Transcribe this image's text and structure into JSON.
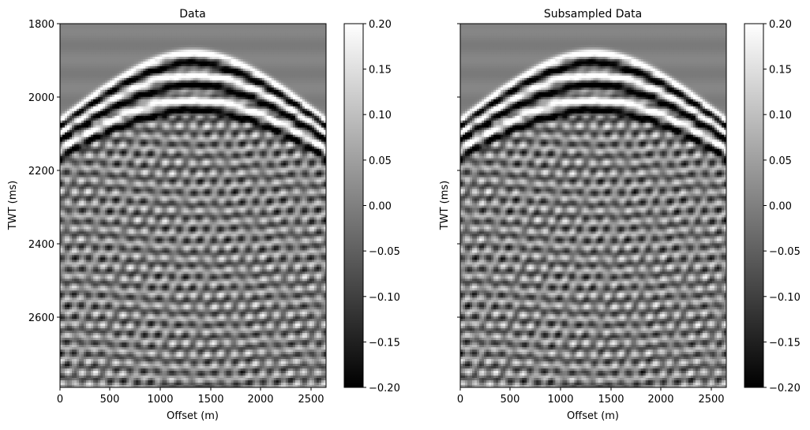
{
  "chart_data": [
    {
      "type": "heatmap",
      "title": "Data",
      "xlabel": "Offset (m)",
      "ylabel": "TWT (ms)",
      "xlim": [
        0,
        2650
      ],
      "ylim": [
        2790,
        1800
      ],
      "x_ticks": [
        0,
        500,
        1000,
        1500,
        2000,
        2500
      ],
      "y_ticks": [
        1800,
        2000,
        2200,
        2400,
        2600
      ],
      "colormap": "gray",
      "colorbar": {
        "range": [
          -0.2,
          0.2
        ],
        "ticks": [
          "0.20",
          "0.15",
          "0.10",
          "0.05",
          "0.00",
          "−0.05",
          "−0.10",
          "−0.15",
          "−0.20"
        ]
      }
    },
    {
      "type": "heatmap",
      "title": "Subsampled Data",
      "xlabel": "Offset (m)",
      "ylabel": "TWT (ms)",
      "xlim": [
        0,
        2650
      ],
      "ylim": [
        2790,
        1800
      ],
      "x_ticks": [
        0,
        500,
        1000,
        1500,
        2000,
        2500
      ],
      "y_ticks": [
        1800,
        2000,
        2200,
        2400,
        2600
      ],
      "colormap": "gray",
      "colorbar": {
        "range": [
          -0.2,
          0.2
        ],
        "ticks": [
          "0.20",
          "0.15",
          "0.10",
          "0.05",
          "0.00",
          "−0.05",
          "−0.10",
          "−0.15",
          "−0.20"
        ]
      }
    }
  ],
  "colors": {
    "axis": "#000000",
    "background": "#ffffff"
  }
}
